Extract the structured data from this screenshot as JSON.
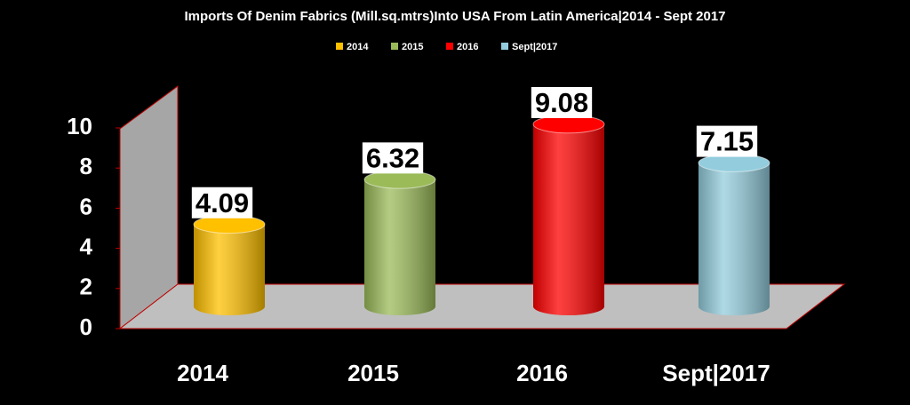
{
  "chart_data": {
    "type": "bar3d",
    "title": "Imports Of Denim Fabrics (Mill.sq.mtrs)Into USA From Latin America|2014 - Sept 2017",
    "categories": [
      "2014",
      "2015",
      "2016",
      "Sept|2017"
    ],
    "values": [
      4.09,
      6.32,
      9.08,
      7.15
    ],
    "colors": [
      "#ffc000",
      "#9bbb59",
      "#ff0000",
      "#93cddd"
    ],
    "ylim": [
      0,
      10
    ],
    "yticks": [
      0,
      2,
      4,
      6,
      8,
      10
    ],
    "legend": "top"
  }
}
